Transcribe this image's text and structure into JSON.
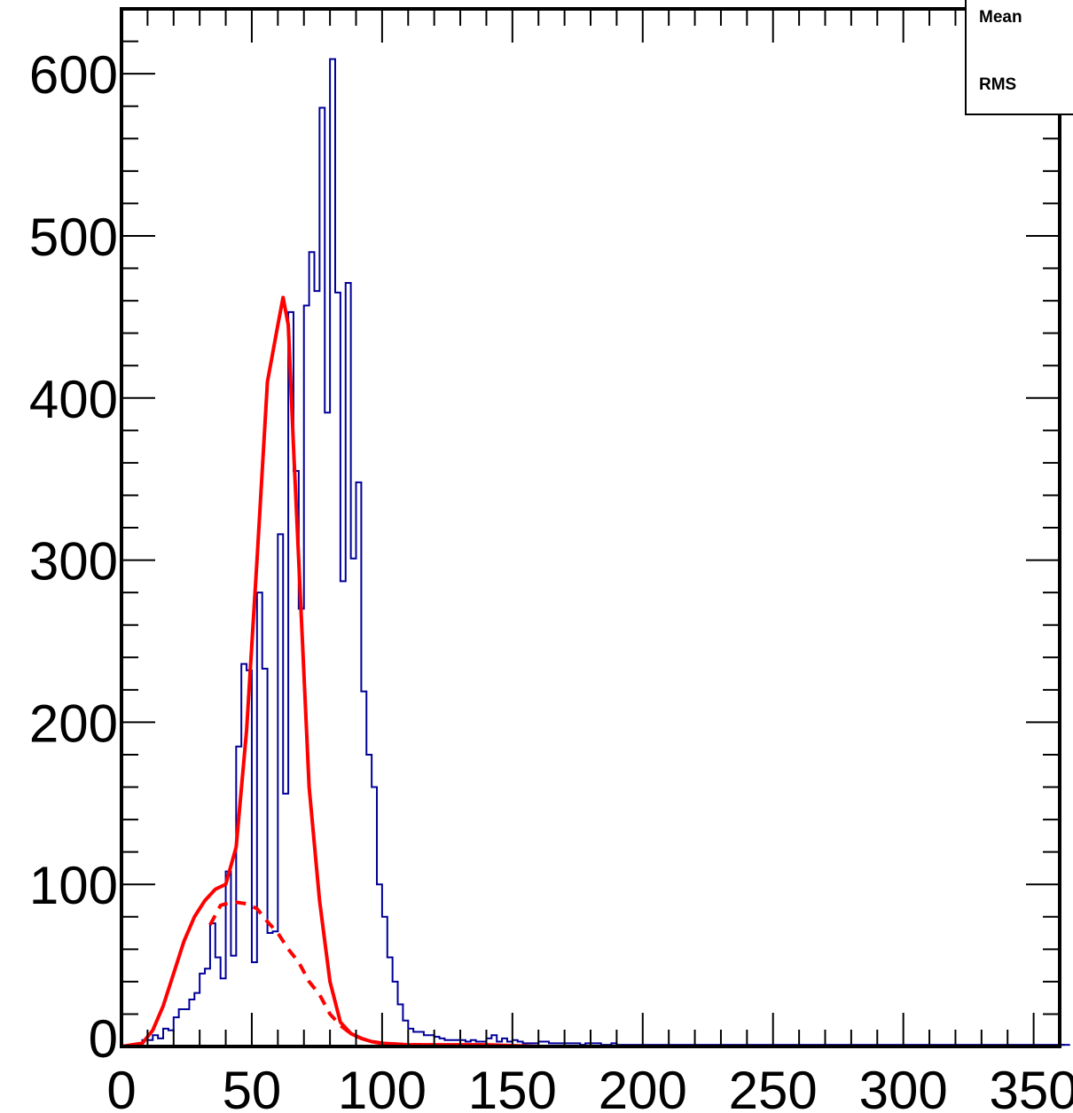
{
  "chart_data": {
    "type": "histogram",
    "title": "",
    "xlabel": "",
    "ylabel": "",
    "xlim": [
      0,
      360
    ],
    "ylim": [
      0,
      640
    ],
    "grid": false,
    "x_ticks": [
      0,
      50,
      100,
      150,
      200,
      250,
      300,
      350
    ],
    "x_tick_labels": [
      "0",
      "50",
      "100",
      "150",
      "200",
      "250",
      "300",
      "350"
    ],
    "y_ticks": [
      0,
      100,
      200,
      300,
      400,
      500,
      600
    ],
    "y_tick_labels": [
      "0",
      "100",
      "200",
      "300",
      "400",
      "500",
      "600"
    ],
    "stats_box": {
      "position": "top-right",
      "entries": [
        "Mean",
        "RMS"
      ]
    },
    "colors": {
      "histogram": "#000099",
      "fit": "#ff0000"
    },
    "histogram": {
      "bin_width": 2,
      "x_start": 0,
      "counts": [
        0,
        0,
        0,
        0,
        4,
        4,
        7,
        5,
        11,
        10,
        18,
        23,
        23,
        29,
        33,
        45,
        48,
        76,
        55,
        42,
        108,
        56,
        185,
        236,
        232,
        52,
        280,
        233,
        70,
        71,
        316,
        156,
        453,
        355,
        270,
        457,
        490,
        466,
        579,
        391,
        609,
        465,
        287,
        471,
        301,
        348,
        219,
        180,
        160,
        100,
        80,
        55,
        40,
        26,
        16,
        11,
        9,
        9,
        7,
        7,
        6,
        5,
        4,
        4,
        4,
        4,
        3,
        4,
        3,
        3,
        5,
        7,
        3,
        5,
        3,
        4,
        3,
        2,
        2,
        2,
        3,
        3,
        2,
        2,
        2,
        2,
        2,
        2,
        1,
        2,
        2,
        2,
        1,
        1,
        2,
        1,
        1,
        1,
        1,
        1,
        1,
        1,
        1,
        1,
        1,
        1,
        1,
        1,
        1,
        1,
        1,
        1,
        1,
        1,
        1,
        1,
        1,
        1,
        1,
        1,
        1,
        1,
        1,
        1,
        1,
        1,
        1,
        1,
        1,
        1,
        1,
        1,
        1,
        1,
        1,
        1,
        1,
        1,
        1,
        1,
        1,
        1,
        1,
        1,
        1,
        1,
        1,
        1,
        1,
        1,
        1,
        1,
        1,
        1,
        1,
        1,
        1,
        1,
        1,
        1,
        1,
        1,
        1,
        1,
        1,
        1,
        1,
        1,
        1,
        1,
        1,
        1,
        1,
        1,
        1,
        1,
        1,
        1,
        1,
        1,
        1,
        1
      ]
    },
    "series": [
      {
        "style": "solid",
        "color": "#ff0000",
        "x": [
          0,
          8,
          12,
          16,
          20,
          24,
          28,
          32,
          36,
          40,
          44,
          48,
          52,
          56,
          60,
          62,
          64,
          66,
          68,
          72,
          76,
          80,
          84,
          88,
          92,
          96,
          100,
          110,
          120,
          140,
          160,
          200,
          250,
          300,
          340
        ],
        "y": [
          0,
          2,
          10,
          25,
          45,
          65,
          80,
          90,
          97,
          100,
          123,
          195,
          300,
          410,
          445,
          462,
          445,
          370,
          300,
          160,
          90,
          40,
          15,
          8,
          5,
          3,
          2,
          1,
          1,
          1,
          0,
          0,
          0,
          0,
          0
        ]
      },
      {
        "style": "dashed",
        "color": "#ff0000",
        "x": [
          34,
          38,
          40,
          44,
          48,
          52,
          56,
          60,
          64,
          68,
          72,
          76,
          80,
          84,
          88,
          92,
          96,
          100,
          110,
          120
        ],
        "y": [
          75,
          87,
          88,
          89,
          88,
          85,
          77,
          70,
          60,
          52,
          40,
          32,
          20,
          13,
          8,
          5,
          3,
          2,
          1,
          1
        ]
      }
    ]
  }
}
